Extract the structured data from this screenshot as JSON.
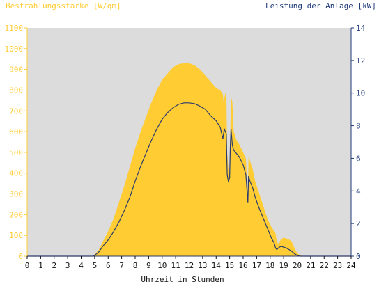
{
  "chart_data": {
    "type": "area",
    "left_axis_label": "Bestrahlungsstärke [W/qm]",
    "right_axis_label": "Leistung der Anlage [kW]",
    "xlabel": "Uhrzeit in Stunden",
    "x_range": [
      0,
      24
    ],
    "left_range": [
      0,
      1100
    ],
    "right_range": [
      0,
      14
    ],
    "x_ticks": [
      "0",
      "1",
      "2",
      "3",
      "4",
      "5",
      "6",
      "7",
      "8",
      "9",
      "10",
      "11",
      "12",
      "13",
      "14",
      "15",
      "16",
      "17",
      "18",
      "19",
      "20",
      "21",
      "22",
      "23",
      "24"
    ],
    "left_ticks": [
      "0",
      "100",
      "200",
      "300",
      "400",
      "500",
      "600",
      "700",
      "800",
      "900",
      "1000",
      "1100"
    ],
    "right_ticks": [
      "0",
      "2",
      "4",
      "6",
      "8",
      "10",
      "12",
      "14"
    ],
    "colors": {
      "plot_background": "#dcdcdc",
      "irradiance_fill": "#ffcc33",
      "power_line": "#2b3a6b",
      "left_axis_text": "#ffcc33",
      "right_axis_text": "#1f3a7a",
      "x_axis_text": "#111111"
    },
    "series": [
      {
        "name": "Bestrahlungsstärke [W/qm]",
        "axis": "left",
        "style": "area",
        "x": [
          0,
          4.9,
          5.0,
          5.3,
          5.6,
          6.0,
          6.4,
          6.8,
          7.2,
          7.6,
          8.0,
          8.4,
          8.8,
          9.2,
          9.6,
          10.0,
          10.4,
          10.8,
          11.2,
          11.6,
          12.0,
          12.4,
          12.8,
          13.2,
          13.6,
          14.0,
          14.3,
          14.5,
          14.55,
          14.6,
          14.75,
          14.82,
          14.9,
          15.0,
          15.05,
          15.1,
          15.2,
          15.3,
          15.5,
          15.7,
          16.0,
          16.2,
          16.35,
          16.4,
          16.5,
          16.7,
          16.9,
          17.2,
          17.5,
          17.8,
          18.1,
          18.3,
          18.4,
          18.5,
          18.6,
          18.8,
          19.0,
          19.2,
          19.4,
          19.6,
          19.8,
          20.0,
          20.2,
          20.4,
          24
        ],
        "y": [
          0,
          0,
          10,
          30,
          70,
          120,
          180,
          260,
          340,
          430,
          520,
          600,
          670,
          740,
          800,
          850,
          880,
          910,
          925,
          930,
          930,
          920,
          900,
          870,
          840,
          810,
          800,
          780,
          740,
          760,
          800,
          500,
          420,
          400,
          600,
          770,
          740,
          600,
          560,
          540,
          500,
          470,
          300,
          480,
          460,
          420,
          360,
          300,
          240,
          180,
          140,
          120,
          110,
          70,
          60,
          80,
          90,
          85,
          80,
          70,
          40,
          15,
          5,
          0,
          0
        ]
      },
      {
        "name": "Leistung der Anlage [kW]",
        "axis": "right",
        "style": "line",
        "x": [
          0,
          4.9,
          5.0,
          5.3,
          5.6,
          6.0,
          6.4,
          6.8,
          7.2,
          7.6,
          8.0,
          8.4,
          8.8,
          9.2,
          9.6,
          10.0,
          10.4,
          10.8,
          11.2,
          11.6,
          12.0,
          12.4,
          12.8,
          13.2,
          13.6,
          14.0,
          14.3,
          14.5,
          14.6,
          14.75,
          14.82,
          14.9,
          15.0,
          15.05,
          15.1,
          15.2,
          15.3,
          15.5,
          15.7,
          16.0,
          16.2,
          16.35,
          16.4,
          16.5,
          16.7,
          16.9,
          17.2,
          17.5,
          17.8,
          18.1,
          18.3,
          18.4,
          18.5,
          18.6,
          18.8,
          19.0,
          19.2,
          19.4,
          19.6,
          19.8,
          20.0,
          20.2,
          20.4,
          24
        ],
        "y": [
          0,
          0,
          0.05,
          0.25,
          0.6,
          1.0,
          1.5,
          2.1,
          2.8,
          3.6,
          4.6,
          5.5,
          6.3,
          7.1,
          7.8,
          8.4,
          8.8,
          9.1,
          9.3,
          9.4,
          9.4,
          9.35,
          9.2,
          9.0,
          8.6,
          8.3,
          7.9,
          7.2,
          7.8,
          7.5,
          5.0,
          4.6,
          4.8,
          6.8,
          7.8,
          6.8,
          6.5,
          6.3,
          6.1,
          5.6,
          5.0,
          3.3,
          4.9,
          4.6,
          4.2,
          3.6,
          2.9,
          2.3,
          1.7,
          1.1,
          0.8,
          0.5,
          0.4,
          0.5,
          0.6,
          0.55,
          0.5,
          0.4,
          0.3,
          0.15,
          0.05,
          0,
          0,
          0
        ]
      }
    ]
  }
}
